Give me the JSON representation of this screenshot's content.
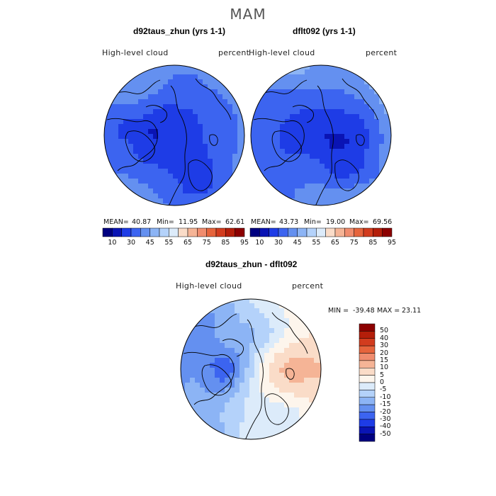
{
  "figure": {
    "season": "MAM"
  },
  "chart_data": [
    {
      "type": "heatmap",
      "title": "d92taus_zhun (yrs 1-1)",
      "variable": "High-level cloud",
      "units": "percent",
      "projection": "north polar stereographic",
      "stats": {
        "mean_label": "MEAN=",
        "mean": "40.87",
        "min_label": "Min=",
        "min": "11.95",
        "max_label": "Max=",
        "max": "62.61"
      },
      "colorbar_ticks": [
        "10",
        "30",
        "45",
        "55",
        "65",
        "75",
        "85",
        "95"
      ],
      "colorbar_colors": [
        "#000080",
        "#0a14b4",
        "#1e3ce6",
        "#3c64f0",
        "#6490f0",
        "#8cb4f5",
        "#b4d2fa",
        "#dcebfa",
        "#fadcc8",
        "#f5b496",
        "#f08c6e",
        "#e6643c",
        "#d23c1e",
        "#b41e0a",
        "#8c0000"
      ]
    },
    {
      "type": "heatmap",
      "title": "dflt092 (yrs 1-1)",
      "variable": "High-level cloud",
      "units": "percent",
      "projection": "north polar stereographic",
      "stats": {
        "mean_label": "MEAN=",
        "mean": "43.73",
        "min_label": "Min=",
        "min": "19.00",
        "max_label": "Max=",
        "max": "69.56"
      },
      "colorbar_ticks": [
        "10",
        "30",
        "45",
        "55",
        "65",
        "75",
        "85",
        "95"
      ],
      "colorbar_colors": [
        "#000080",
        "#0a14b4",
        "#1e3ce6",
        "#3c64f0",
        "#6490f0",
        "#8cb4f5",
        "#b4d2fa",
        "#dcebfa",
        "#fadcc8",
        "#f5b496",
        "#f08c6e",
        "#e6643c",
        "#d23c1e",
        "#b41e0a",
        "#8c0000"
      ]
    },
    {
      "type": "heatmap",
      "title": "d92taus_zhun - dflt092",
      "variable": "High-level cloud",
      "units": "percent",
      "projection": "north polar stereographic",
      "stats": {
        "min_label": "MIN =",
        "min": "-39.48",
        "max_label": "MAX =",
        "max": "23.11"
      },
      "colorbar_ticks": [
        "50",
        "40",
        "30",
        "20",
        "15",
        "10",
        "5",
        "0",
        "-5",
        "-10",
        "-15",
        "-20",
        "-30",
        "-40",
        "-50"
      ],
      "colorbar_colors": [
        "#8c0000",
        "#b41e0a",
        "#d23c1e",
        "#e6643c",
        "#f08c6e",
        "#f5b496",
        "#fadcc8",
        "#fdf5ec",
        "#dcebfa",
        "#b4d2fa",
        "#8cb4f5",
        "#6490f0",
        "#3c64f0",
        "#1e3ce6",
        "#0a14b4",
        "#000080"
      ]
    }
  ]
}
